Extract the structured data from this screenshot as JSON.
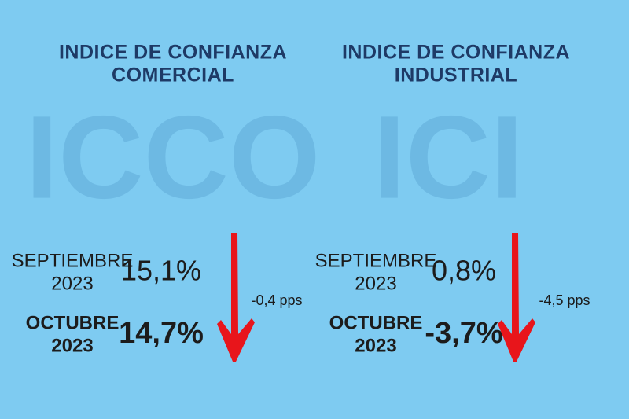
{
  "panels": [
    {
      "title": [
        "INDICE DE CONFIANZA",
        "COMERCIAL"
      ],
      "watermark": "ICCO",
      "rows": [
        {
          "label": [
            "SEPTIEMBRE",
            "2023"
          ],
          "value": "15,1%"
        },
        {
          "label": [
            "OCTUBRE",
            "2023"
          ],
          "value": "14,7%"
        }
      ],
      "change": "-0,4 pps"
    },
    {
      "title": [
        "INDICE DE CONFIANZA",
        "INDUSTRIAL"
      ],
      "watermark": "ICI",
      "rows": [
        {
          "label": [
            "SEPTIEMBRE",
            "2023"
          ],
          "value": "0,8%"
        },
        {
          "label": [
            "OCTUBRE",
            "2023"
          ],
          "value": "-3,7%"
        }
      ],
      "change": "-4,5 pps"
    }
  ]
}
